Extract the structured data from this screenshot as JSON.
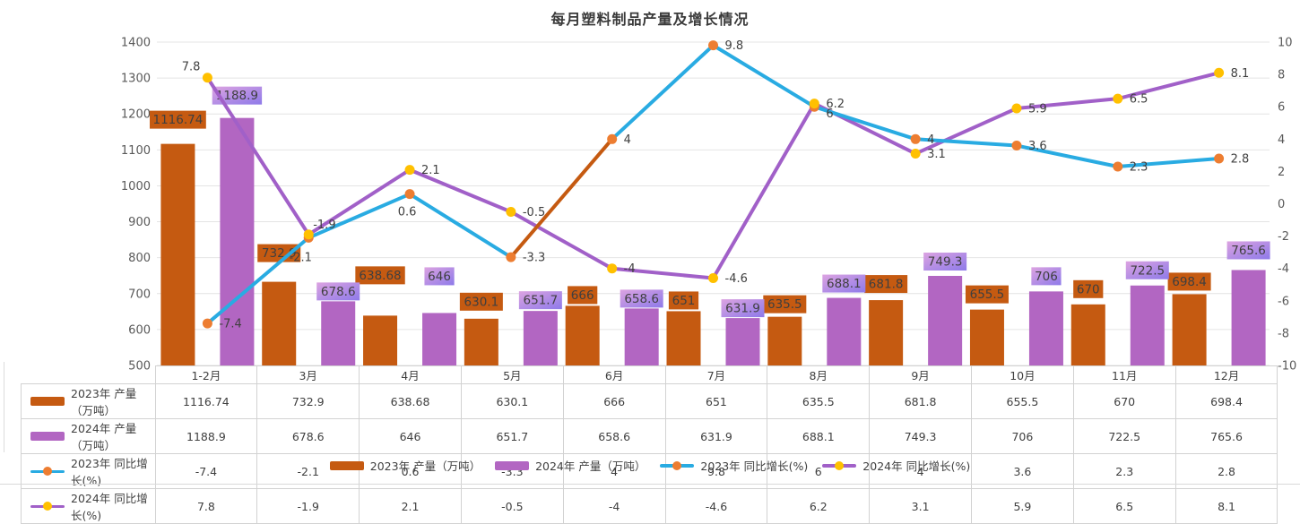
{
  "title": "每月塑料制品产量及增长情况",
  "chart_data": {
    "type": "combo-bar-line",
    "categories": [
      "1-2月",
      "3月",
      "4月",
      "5月",
      "6月",
      "7月",
      "8月",
      "9月",
      "10月",
      "11月",
      "12月"
    ],
    "series": [
      {
        "name": "2023年 产量（万吨）",
        "type": "bar",
        "axis": "left",
        "color": "#c55a11",
        "values": [
          1116.74,
          732.9,
          638.68,
          630.1,
          666,
          651,
          635.5,
          681.8,
          655.5,
          670,
          698.4
        ]
      },
      {
        "name": "2024年 产量（万吨）",
        "type": "bar",
        "axis": "left",
        "color": "#b266c2",
        "label_gradient": [
          "#dca3e1",
          "#8e7ae9"
        ],
        "values": [
          1188.9,
          678.6,
          646,
          651.7,
          658.6,
          631.9,
          688.1,
          749.3,
          706,
          722.5,
          765.6
        ]
      },
      {
        "name": "2023年 同比增长(%)",
        "type": "line",
        "axis": "right",
        "color": "#29abe2",
        "marker_color": "#ed7d31",
        "segment_color_overrides": {
          "3": "#c55a11"
        },
        "values": [
          -7.4,
          -2.1,
          0.6,
          -3.3,
          4,
          9.8,
          6,
          4,
          3.6,
          2.3,
          2.8
        ]
      },
      {
        "name": "2024年 同比增长(%)",
        "type": "line",
        "axis": "right",
        "color": "#a160c8",
        "marker_color": "#ffc000",
        "values": [
          7.8,
          -1.9,
          2.1,
          -0.5,
          -4,
          -4.6,
          6.2,
          3.1,
          5.9,
          6.5,
          8.1
        ]
      }
    ],
    "left_axis": {
      "min": 500,
      "max": 1400,
      "ticks": [
        "1400",
        "1300",
        "1200",
        "1100",
        "1000",
        "900",
        "800",
        "700",
        "600",
        "500"
      ]
    },
    "right_axis": {
      "min": -10,
      "max": 10,
      "ticks": [
        "10",
        "8",
        "6",
        "4",
        "2",
        "0",
        "-2",
        "-4",
        "-6",
        "-8",
        "-10"
      ]
    },
    "grid": "horizontal",
    "legend_position": "bottom",
    "data_table_shown": true
  }
}
